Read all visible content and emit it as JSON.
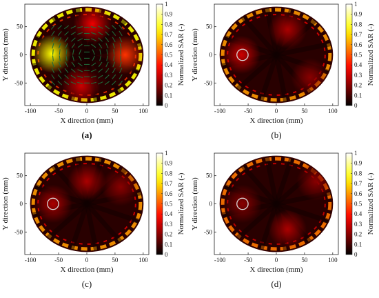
{
  "chart_data": [
    {
      "type": "heatmap",
      "panel_label": "(a)",
      "panel_label_bold": true,
      "arrows": true,
      "marker": false,
      "xlabel": "X direction (mm)",
      "ylabel": "Y direction (mm)",
      "colorbar_label": "Normalized SAR (-)",
      "xticks": [
        -100,
        -50,
        0,
        50,
        100
      ],
      "yticks": [
        50,
        0,
        -50
      ],
      "colorbar_ticks": [
        0,
        0.1,
        0.2,
        0.3,
        0.4,
        0.5,
        0.6,
        0.7,
        0.8,
        0.9,
        1
      ],
      "xlim": [
        -110,
        110
      ],
      "ylim": [
        -90,
        90
      ],
      "clim": [
        0,
        1
      ],
      "colormap": "hot",
      "head_outline": {
        "cx": 0,
        "cy": 0,
        "rx": 100,
        "ry": 85
      },
      "hotspots": [
        {
          "x": -62,
          "y": 2,
          "value": 0.75
        },
        {
          "x": 68,
          "y": 0,
          "value": 0.45
        },
        {
          "x": 10,
          "y": 55,
          "value": 0.35
        },
        {
          "x": -10,
          "y": -55,
          "value": 0.3
        }
      ],
      "shell_value": 0.75
    },
    {
      "type": "heatmap",
      "panel_label": "(b)",
      "panel_label_bold": false,
      "arrows": false,
      "marker": true,
      "xlabel": "X direction (mm)",
      "ylabel": "Y direction (mm)",
      "colorbar_label": "Normalized SAR (-)",
      "xticks": [
        -100,
        -50,
        0,
        50,
        100
      ],
      "yticks": [
        50,
        0,
        -50
      ],
      "colorbar_ticks": [
        0,
        0.1,
        0.2,
        0.3,
        0.4,
        0.5,
        0.6,
        0.7,
        0.8,
        0.9,
        1
      ],
      "xlim": [
        -110,
        110
      ],
      "ylim": [
        -90,
        90
      ],
      "clim": [
        0,
        1
      ],
      "colormap": "hot",
      "head_outline": {
        "cx": 0,
        "cy": 0,
        "rx": 100,
        "ry": 85
      },
      "target": {
        "x": -60,
        "y": 0,
        "r": 10
      },
      "hotspots": [
        {
          "x": -62,
          "y": 0,
          "value": 0.3
        },
        {
          "x": 20,
          "y": 45,
          "value": 0.25
        },
        {
          "x": 60,
          "y": -40,
          "value": 0.2
        }
      ],
      "shell_value": 0.6
    },
    {
      "type": "heatmap",
      "panel_label": "(c)",
      "panel_label_bold": false,
      "arrows": false,
      "marker": true,
      "xlabel": "X direction (mm)",
      "ylabel": "Y direction (mm)",
      "colorbar_label": "Normalized SAR (-)",
      "xticks": [
        -100,
        -50,
        0,
        50,
        100
      ],
      "yticks": [
        50,
        0,
        -50
      ],
      "colorbar_ticks": [
        0,
        0.1,
        0.2,
        0.3,
        0.4,
        0.5,
        0.6,
        0.7,
        0.8,
        0.9,
        1
      ],
      "xlim": [
        -110,
        110
      ],
      "ylim": [
        -90,
        90
      ],
      "clim": [
        0,
        1
      ],
      "colormap": "hot",
      "head_outline": {
        "cx": 0,
        "cy": 0,
        "rx": 100,
        "ry": 85
      },
      "target": {
        "x": -60,
        "y": 0,
        "r": 10
      },
      "hotspots": [
        {
          "x": -60,
          "y": 0,
          "value": 0.25
        },
        {
          "x": 0,
          "y": 40,
          "value": 0.25
        },
        {
          "x": 60,
          "y": 30,
          "value": 0.2
        }
      ],
      "shell_value": 0.6
    },
    {
      "type": "heatmap",
      "panel_label": "(d)",
      "panel_label_bold": false,
      "arrows": false,
      "marker": true,
      "xlabel": "X direction (mm)",
      "ylabel": "Y direction (mm)",
      "colorbar_label": "Normalized SAR (-)",
      "xticks": [
        -100,
        -50,
        0,
        50,
        100
      ],
      "yticks": [
        50,
        0,
        -50
      ],
      "colorbar_ticks": [
        0,
        0.1,
        0.2,
        0.3,
        0.4,
        0.5,
        0.6,
        0.7,
        0.8,
        0.9,
        1
      ],
      "xlim": [
        -110,
        110
      ],
      "ylim": [
        -90,
        90
      ],
      "clim": [
        0,
        1
      ],
      "colormap": "hot",
      "head_outline": {
        "cx": 0,
        "cy": 0,
        "rx": 100,
        "ry": 85
      },
      "target": {
        "x": -60,
        "y": 0,
        "r": 10
      },
      "hotspots": [
        {
          "x": -60,
          "y": 0,
          "value": 0.2
        },
        {
          "x": 20,
          "y": -45,
          "value": 0.25
        },
        {
          "x": 70,
          "y": 40,
          "value": 0.2
        }
      ],
      "shell_value": 0.55
    }
  ]
}
